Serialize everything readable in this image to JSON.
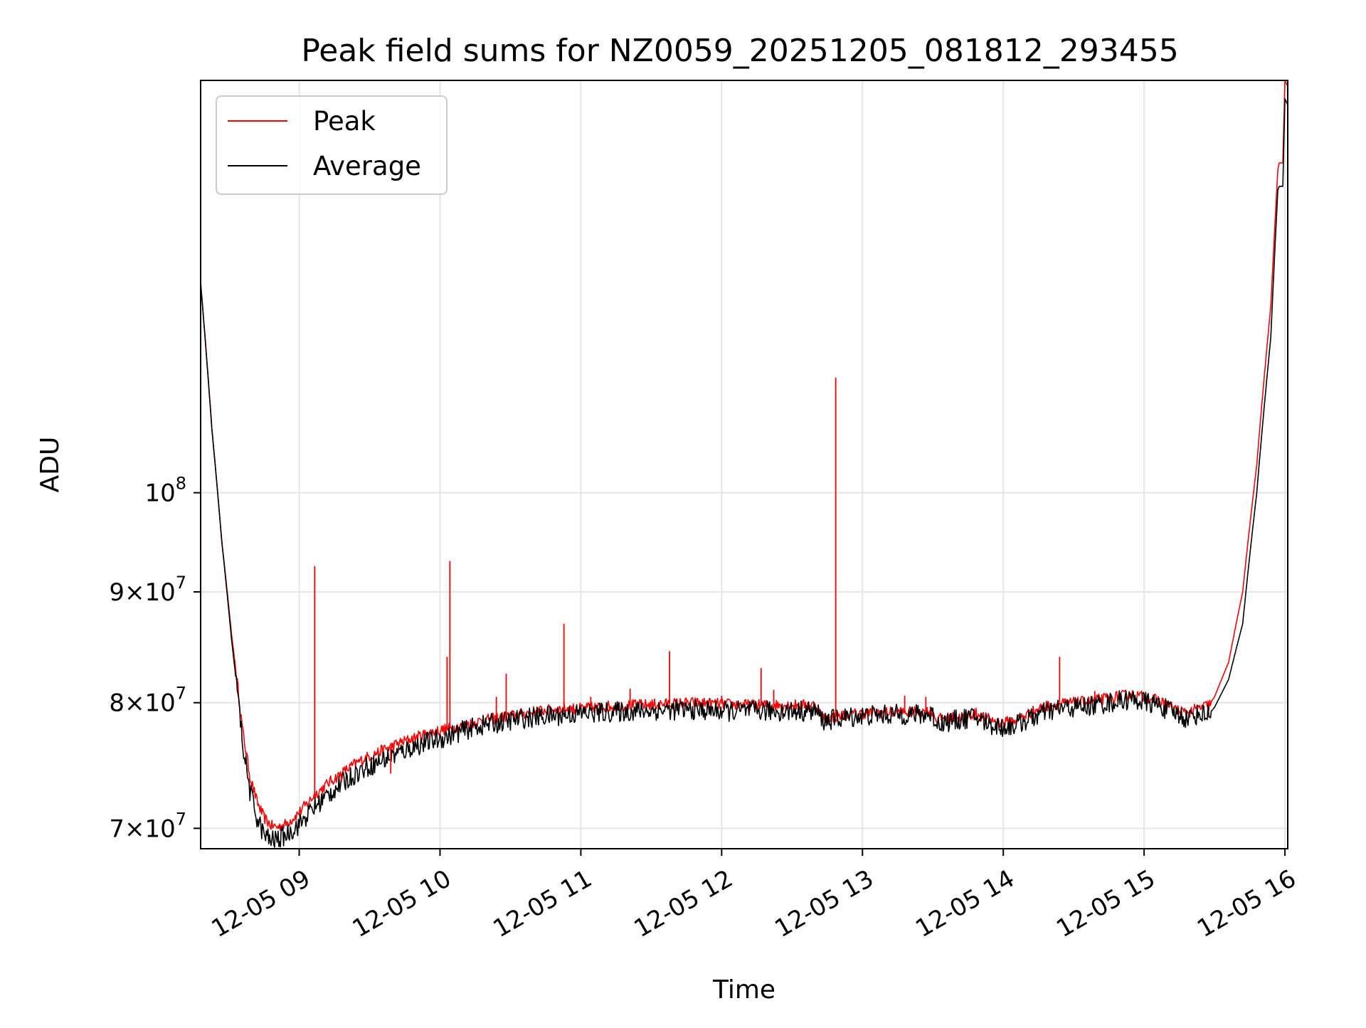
{
  "chart_data": {
    "type": "line",
    "title": "Peak field sums for NZ0059_20251205_081812_293455",
    "xlabel": "Time",
    "ylabel": "ADU",
    "x_unit": "hours since 2025-12-05 00:00",
    "xlim": [
      8.3,
      16.02
    ],
    "y_scale": "log",
    "ylim": [
      68500000,
      155000000
    ],
    "grid": true,
    "legend_position": "top-left",
    "x_ticks": [
      {
        "value": 9,
        "label": "12-05 09"
      },
      {
        "value": 10,
        "label": "12-05 10"
      },
      {
        "value": 11,
        "label": "12-05 11"
      },
      {
        "value": 12,
        "label": "12-05 12"
      },
      {
        "value": 13,
        "label": "12-05 13"
      },
      {
        "value": 14,
        "label": "12-05 14"
      },
      {
        "value": 15,
        "label": "12-05 15"
      },
      {
        "value": 16,
        "label": "12-05 16"
      }
    ],
    "y_ticks": [
      {
        "value": 70000000,
        "mant": "7",
        "times": "×",
        "base": "10",
        "exp": "7"
      },
      {
        "value": 80000000,
        "mant": "8",
        "times": "×",
        "base": "10",
        "exp": "7"
      },
      {
        "value": 90000000,
        "mant": "9",
        "times": "×",
        "base": "10",
        "exp": "7"
      },
      {
        "value": 100000000,
        "mant": "",
        "times": "",
        "base": "10",
        "exp": "8"
      }
    ],
    "series": [
      {
        "name": "Peak",
        "color": "#ff0000",
        "x": [
          8.3,
          8.38,
          8.45,
          8.52,
          8.6,
          8.65,
          8.7,
          8.75,
          8.8,
          8.85,
          8.9,
          8.95,
          9.0,
          9.1,
          9.2,
          9.3,
          9.4,
          9.5,
          9.6,
          9.7,
          9.8,
          9.9,
          10.0,
          10.1,
          10.2,
          10.3,
          10.4,
          10.5,
          10.6,
          10.7,
          10.8,
          10.9,
          11.0,
          11.2,
          11.4,
          11.6,
          11.8,
          12.0,
          12.2,
          12.4,
          12.6,
          12.67,
          12.72,
          12.8,
          12.9,
          13.0,
          13.2,
          13.4,
          13.5,
          13.52,
          13.6,
          13.7,
          13.8,
          13.9,
          14.0,
          14.1,
          14.2,
          14.3,
          14.4,
          14.5,
          14.6,
          14.7,
          14.8,
          14.9,
          15.0,
          15.1,
          15.2,
          15.3,
          15.4,
          15.46,
          15.5,
          15.6,
          15.7,
          15.8,
          15.9,
          15.95,
          15.96,
          15.985,
          16.0,
          16.02
        ],
        "y": [
          125000000,
          107000000,
          95000000,
          86000000,
          77500000,
          74000000,
          72000000,
          70800000,
          70200000,
          70100000,
          70300000,
          70700000,
          71200000,
          72400000,
          73400000,
          74200000,
          75000000,
          75600000,
          76100000,
          76600000,
          77000000,
          77400000,
          77700000,
          77900000,
          78200000,
          78500000,
          78700000,
          78900000,
          79100000,
          79300000,
          79400000,
          79500000,
          79500000,
          79700000,
          79800000,
          79900000,
          80000000,
          79900000,
          79800000,
          79800000,
          79800000,
          79800000,
          78700000,
          78800000,
          79000000,
          79100000,
          79200000,
          79200000,
          79300000,
          78600000,
          78700000,
          78800000,
          79100000,
          78600000,
          78300000,
          78600000,
          79200000,
          79700000,
          79900000,
          80000000,
          80100000,
          80300000,
          80500000,
          80700000,
          80500000,
          80200000,
          79600000,
          79100000,
          79600000,
          79800000,
          80500000,
          83500000,
          90000000,
          103000000,
          122000000,
          141000000,
          142000000,
          142000000,
          155000000,
          154000000
        ]
      },
      {
        "name": "Average",
        "color": "#000000",
        "x": [
          8.3,
          8.38,
          8.45,
          8.52,
          8.6,
          8.65,
          8.7,
          8.75,
          8.8,
          8.85,
          8.9,
          8.95,
          9.0,
          9.1,
          9.2,
          9.3,
          9.4,
          9.5,
          9.6,
          9.7,
          9.8,
          9.9,
          10.0,
          10.1,
          10.2,
          10.3,
          10.4,
          10.5,
          10.6,
          10.7,
          10.8,
          10.9,
          11.0,
          11.2,
          11.4,
          11.6,
          11.8,
          12.0,
          12.2,
          12.4,
          12.6,
          12.67,
          12.72,
          12.8,
          12.9,
          13.0,
          13.2,
          13.4,
          13.5,
          13.52,
          13.6,
          13.7,
          13.8,
          13.9,
          14.0,
          14.1,
          14.2,
          14.3,
          14.4,
          14.5,
          14.6,
          14.7,
          14.8,
          14.9,
          15.0,
          15.1,
          15.2,
          15.3,
          15.4,
          15.46,
          15.5,
          15.6,
          15.7,
          15.8,
          15.9,
          15.95,
          15.96,
          15.985,
          16.0,
          16.02
        ],
        "y": [
          125000000,
          107000000,
          95000000,
          85500000,
          76500000,
          72800000,
          70800000,
          69500000,
          69100000,
          69200000,
          69500000,
          69900000,
          70300000,
          71500000,
          72500000,
          73400000,
          74200000,
          74800000,
          75300000,
          75800000,
          76300000,
          76700000,
          77000000,
          77400000,
          77800000,
          78100000,
          78300000,
          78500000,
          78700000,
          78800000,
          78900000,
          79000000,
          79100000,
          79200000,
          79300000,
          79400000,
          79400000,
          79300000,
          79300000,
          79300000,
          79300000,
          79300000,
          78500000,
          78600000,
          78800000,
          78900000,
          79000000,
          79000000,
          79000000,
          78300000,
          78400000,
          78600000,
          78800000,
          78200000,
          77900000,
          78200000,
          78700000,
          79200000,
          79500000,
          79600000,
          79700000,
          79900000,
          80100000,
          80300000,
          80100000,
          79800000,
          79200000,
          78700000,
          79100000,
          79000000,
          79600000,
          82000000,
          87000000,
          100000000,
          118000000,
          138000000,
          138500000,
          138500000,
          152000000,
          151000000
        ]
      }
    ],
    "peak_spikes": [
      {
        "x": 9.11,
        "y": 92500000
      },
      {
        "x": 9.3,
        "y": 73500000
      },
      {
        "x": 9.65,
        "y": 74200000
      },
      {
        "x": 10.05,
        "y": 84000000
      },
      {
        "x": 10.07,
        "y": 93000000
      },
      {
        "x": 10.4,
        "y": 80500000
      },
      {
        "x": 10.47,
        "y": 82500000
      },
      {
        "x": 10.88,
        "y": 87000000
      },
      {
        "x": 11.07,
        "y": 80500000
      },
      {
        "x": 11.35,
        "y": 81200000
      },
      {
        "x": 11.63,
        "y": 84500000
      },
      {
        "x": 12.0,
        "y": 80600000
      },
      {
        "x": 12.28,
        "y": 83000000
      },
      {
        "x": 12.37,
        "y": 81100000
      },
      {
        "x": 12.81,
        "y": 113000000
      },
      {
        "x": 13.3,
        "y": 80600000
      },
      {
        "x": 13.45,
        "y": 80500000
      },
      {
        "x": 14.4,
        "y": 84000000
      },
      {
        "x": 14.65,
        "y": 81000000
      }
    ],
    "legend": [
      {
        "label": "Peak",
        "color": "#ff0000"
      },
      {
        "label": "Average",
        "color": "#000000"
      }
    ]
  }
}
